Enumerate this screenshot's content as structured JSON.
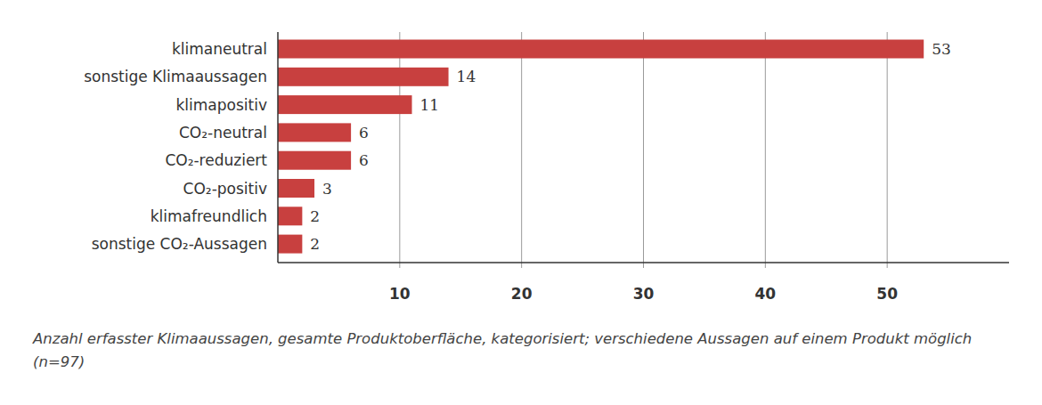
{
  "chart_data": {
    "type": "bar",
    "orientation": "horizontal",
    "categories": [
      "klimaneutral",
      "sonstige Klimaaussagen",
      "klimapositiv",
      "CO₂-neutral",
      "CO₂-reduziert",
      "CO₂-positiv",
      "klimafreundlich",
      "sonstige CO₂-Aussagen"
    ],
    "values": [
      53,
      14,
      11,
      6,
      6,
      3,
      2,
      2
    ],
    "color": "#c8403f",
    "xlim": [
      0,
      60
    ],
    "xticks": [
      10,
      20,
      30,
      40,
      50
    ],
    "grid": true,
    "data_labels": true,
    "xlabel": "Anzahl erfasster Klimaaussagen, gesamte Produktoberfläche, kategorisiert; verschiedene Aussagen auf einem Produkt möglich (n=97)"
  }
}
